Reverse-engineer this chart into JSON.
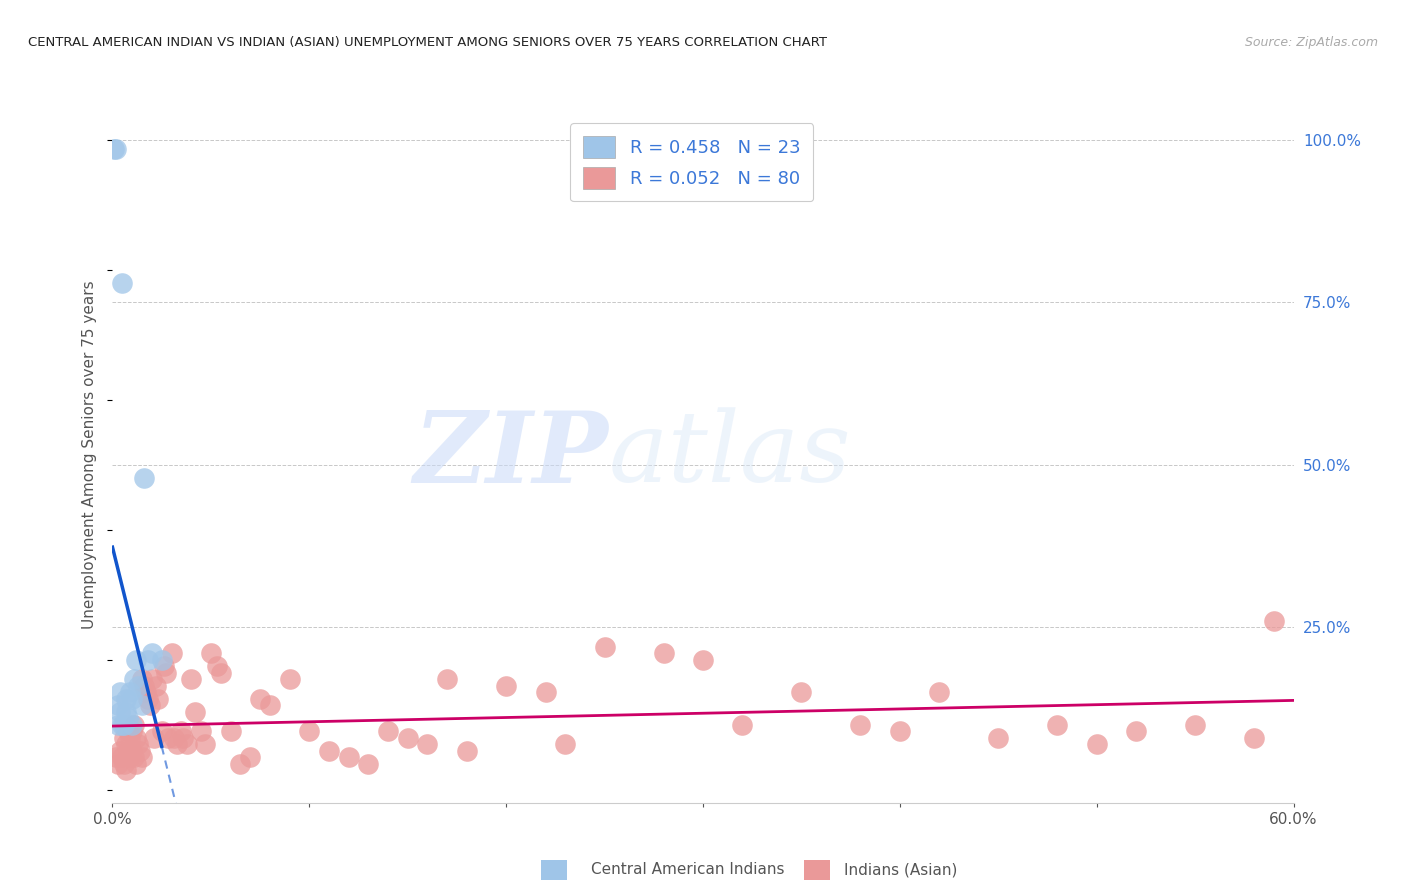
{
  "title": "CENTRAL AMERICAN INDIAN VS INDIAN (ASIAN) UNEMPLOYMENT AMONG SENIORS OVER 75 YEARS CORRELATION CHART",
  "source": "Source: ZipAtlas.com",
  "ylabel": "Unemployment Among Seniors over 75 years",
  "xlim": [
    0.0,
    0.6
  ],
  "ylim": [
    -0.02,
    1.05
  ],
  "blue_color": "#9fc5e8",
  "pink_color": "#ea9999",
  "blue_line_color": "#1155cc",
  "pink_line_color": "#cc0066",
  "grid_color": "#b0b0b0",
  "bg_color": "#ffffff",
  "watermark_zip": "ZIP",
  "watermark_atlas": "atlas",
  "legend_r_blue": "R = 0.458",
  "legend_n_blue": "N = 23",
  "legend_r_pink": "R = 0.052",
  "legend_n_pink": "N = 80",
  "blue_points_x": [
    0.001,
    0.002,
    0.003,
    0.003,
    0.004,
    0.004,
    0.005,
    0.005,
    0.006,
    0.007,
    0.007,
    0.008,
    0.009,
    0.01,
    0.01,
    0.011,
    0.012,
    0.013,
    0.015,
    0.016,
    0.018,
    0.02,
    0.025
  ],
  "blue_points_y": [
    0.985,
    0.985,
    0.1,
    0.13,
    0.12,
    0.15,
    0.78,
    0.1,
    0.1,
    0.12,
    0.14,
    0.11,
    0.15,
    0.1,
    0.14,
    0.17,
    0.2,
    0.16,
    0.13,
    0.48,
    0.2,
    0.21,
    0.2
  ],
  "pink_points_x": [
    0.002,
    0.003,
    0.004,
    0.005,
    0.006,
    0.006,
    0.007,
    0.007,
    0.008,
    0.008,
    0.009,
    0.009,
    0.01,
    0.01,
    0.011,
    0.011,
    0.012,
    0.012,
    0.013,
    0.014,
    0.015,
    0.015,
    0.016,
    0.017,
    0.018,
    0.019,
    0.02,
    0.021,
    0.022,
    0.023,
    0.025,
    0.026,
    0.027,
    0.028,
    0.03,
    0.031,
    0.033,
    0.035,
    0.036,
    0.038,
    0.04,
    0.042,
    0.045,
    0.047,
    0.05,
    0.053,
    0.055,
    0.06,
    0.065,
    0.07,
    0.075,
    0.08,
    0.09,
    0.1,
    0.11,
    0.12,
    0.13,
    0.14,
    0.15,
    0.16,
    0.17,
    0.18,
    0.2,
    0.22,
    0.23,
    0.25,
    0.28,
    0.3,
    0.32,
    0.35,
    0.38,
    0.4,
    0.42,
    0.45,
    0.48,
    0.5,
    0.52,
    0.55,
    0.58,
    0.59
  ],
  "pink_points_y": [
    0.05,
    0.04,
    0.06,
    0.05,
    0.04,
    0.08,
    0.07,
    0.03,
    0.06,
    0.09,
    0.05,
    0.08,
    0.06,
    0.09,
    0.05,
    0.1,
    0.08,
    0.04,
    0.07,
    0.06,
    0.17,
    0.05,
    0.16,
    0.15,
    0.14,
    0.13,
    0.17,
    0.08,
    0.16,
    0.14,
    0.09,
    0.19,
    0.18,
    0.08,
    0.21,
    0.08,
    0.07,
    0.09,
    0.08,
    0.07,
    0.17,
    0.12,
    0.09,
    0.07,
    0.21,
    0.19,
    0.18,
    0.09,
    0.04,
    0.05,
    0.14,
    0.13,
    0.17,
    0.09,
    0.06,
    0.05,
    0.04,
    0.09,
    0.08,
    0.07,
    0.17,
    0.06,
    0.16,
    0.15,
    0.07,
    0.22,
    0.21,
    0.2,
    0.1,
    0.15,
    0.1,
    0.09,
    0.15,
    0.08,
    0.1,
    0.07,
    0.09,
    0.1,
    0.08,
    0.26
  ]
}
